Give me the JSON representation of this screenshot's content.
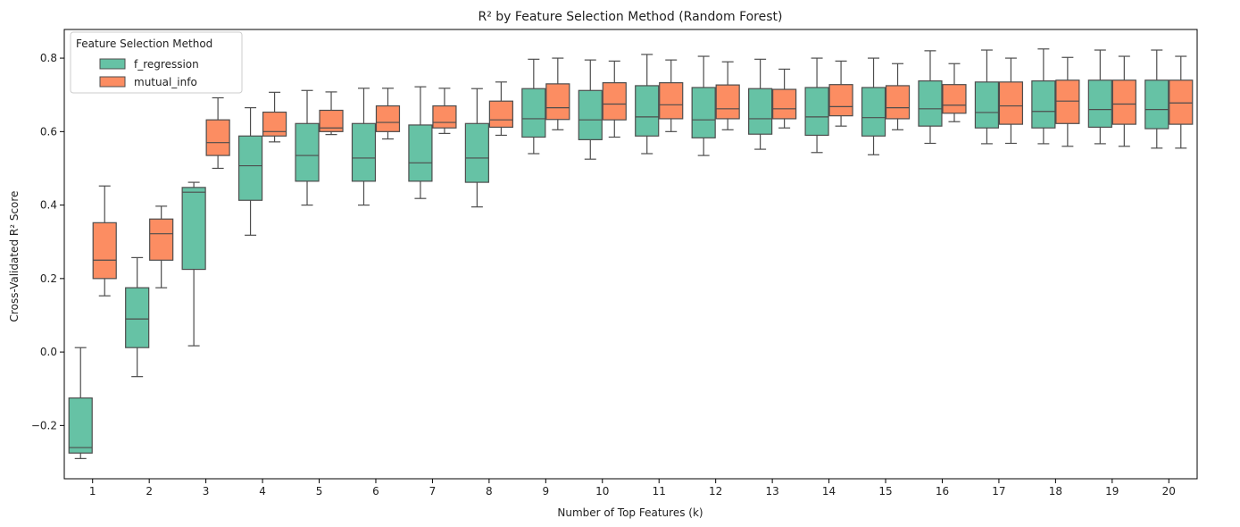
{
  "chart_data": {
    "type": "boxplot",
    "title": "R² by Feature Selection Method (Random Forest)",
    "xlabel": "Number of Top Features (k)",
    "ylabel": "Cross-Validated R² Score",
    "ylim": [
      -0.345,
      0.878
    ],
    "yticks": [
      -0.2,
      0.0,
      0.2,
      0.4,
      0.6,
      0.8
    ],
    "ytick_labels": [
      "−0.2",
      "0.0",
      "0.2",
      "0.4",
      "0.6",
      "0.8"
    ],
    "categories": [
      "1",
      "2",
      "3",
      "4",
      "5",
      "6",
      "7",
      "8",
      "9",
      "10",
      "11",
      "12",
      "13",
      "14",
      "15",
      "16",
      "17",
      "18",
      "19",
      "20"
    ],
    "grid": false,
    "legend": {
      "title": "Feature Selection Method",
      "placement": "top-left"
    },
    "series": [
      {
        "name": "f_regression",
        "color": "#66c2a5",
        "boxes": [
          {
            "min": -0.29,
            "q1": -0.275,
            "median": -0.26,
            "q3": -0.125,
            "max": 0.012
          },
          {
            "min": -0.067,
            "q1": 0.012,
            "median": 0.09,
            "q3": 0.175,
            "max": 0.257
          },
          {
            "min": 0.017,
            "q1": 0.225,
            "median": 0.435,
            "q3": 0.448,
            "max": 0.462
          },
          {
            "min": 0.318,
            "q1": 0.413,
            "median": 0.507,
            "q3": 0.588,
            "max": 0.665
          },
          {
            "min": 0.4,
            "q1": 0.465,
            "median": 0.535,
            "q3": 0.622,
            "max": 0.712
          },
          {
            "min": 0.4,
            "q1": 0.465,
            "median": 0.528,
            "q3": 0.622,
            "max": 0.718
          },
          {
            "min": 0.418,
            "q1": 0.465,
            "median": 0.515,
            "q3": 0.618,
            "max": 0.722
          },
          {
            "min": 0.395,
            "q1": 0.462,
            "median": 0.528,
            "q3": 0.622,
            "max": 0.717
          },
          {
            "min": 0.54,
            "q1": 0.585,
            "median": 0.635,
            "q3": 0.717,
            "max": 0.797
          },
          {
            "min": 0.525,
            "q1": 0.578,
            "median": 0.632,
            "q3": 0.712,
            "max": 0.795
          },
          {
            "min": 0.54,
            "q1": 0.588,
            "median": 0.64,
            "q3": 0.725,
            "max": 0.81
          },
          {
            "min": 0.535,
            "q1": 0.583,
            "median": 0.632,
            "q3": 0.72,
            "max": 0.805
          },
          {
            "min": 0.552,
            "q1": 0.593,
            "median": 0.635,
            "q3": 0.717,
            "max": 0.797
          },
          {
            "min": 0.543,
            "q1": 0.59,
            "median": 0.64,
            "q3": 0.72,
            "max": 0.8
          },
          {
            "min": 0.537,
            "q1": 0.588,
            "median": 0.638,
            "q3": 0.72,
            "max": 0.8
          },
          {
            "min": 0.568,
            "q1": 0.615,
            "median": 0.662,
            "q3": 0.738,
            "max": 0.82
          },
          {
            "min": 0.567,
            "q1": 0.61,
            "median": 0.652,
            "q3": 0.735,
            "max": 0.822
          },
          {
            "min": 0.567,
            "q1": 0.61,
            "median": 0.655,
            "q3": 0.738,
            "max": 0.825
          },
          {
            "min": 0.567,
            "q1": 0.612,
            "median": 0.66,
            "q3": 0.74,
            "max": 0.822
          },
          {
            "min": 0.555,
            "q1": 0.608,
            "median": 0.66,
            "q3": 0.74,
            "max": 0.822
          }
        ]
      },
      {
        "name": "mutual_info",
        "color": "#fc8d62",
        "boxes": [
          {
            "min": 0.153,
            "q1": 0.2,
            "median": 0.25,
            "q3": 0.352,
            "max": 0.452
          },
          {
            "min": 0.175,
            "q1": 0.25,
            "median": 0.322,
            "q3": 0.362,
            "max": 0.397
          },
          {
            "min": 0.5,
            "q1": 0.535,
            "median": 0.57,
            "q3": 0.632,
            "max": 0.692
          },
          {
            "min": 0.572,
            "q1": 0.588,
            "median": 0.6,
            "q3": 0.653,
            "max": 0.707
          },
          {
            "min": 0.592,
            "q1": 0.6,
            "median": 0.61,
            "q3": 0.658,
            "max": 0.708
          },
          {
            "min": 0.58,
            "q1": 0.6,
            "median": 0.625,
            "q3": 0.67,
            "max": 0.718
          },
          {
            "min": 0.595,
            "q1": 0.61,
            "median": 0.625,
            "q3": 0.67,
            "max": 0.718
          },
          {
            "min": 0.59,
            "q1": 0.612,
            "median": 0.632,
            "q3": 0.683,
            "max": 0.735
          },
          {
            "min": 0.605,
            "q1": 0.633,
            "median": 0.665,
            "q3": 0.73,
            "max": 0.8
          },
          {
            "min": 0.585,
            "q1": 0.632,
            "median": 0.675,
            "q3": 0.733,
            "max": 0.792
          },
          {
            "min": 0.6,
            "q1": 0.635,
            "median": 0.673,
            "q3": 0.733,
            "max": 0.795
          },
          {
            "min": 0.605,
            "q1": 0.635,
            "median": 0.662,
            "q3": 0.727,
            "max": 0.79
          },
          {
            "min": 0.61,
            "q1": 0.635,
            "median": 0.662,
            "q3": 0.715,
            "max": 0.77
          },
          {
            "min": 0.615,
            "q1": 0.643,
            "median": 0.668,
            "q3": 0.728,
            "max": 0.792
          },
          {
            "min": 0.605,
            "q1": 0.635,
            "median": 0.665,
            "q3": 0.725,
            "max": 0.785
          },
          {
            "min": 0.627,
            "q1": 0.65,
            "median": 0.672,
            "q3": 0.728,
            "max": 0.785
          },
          {
            "min": 0.568,
            "q1": 0.62,
            "median": 0.67,
            "q3": 0.735,
            "max": 0.8
          },
          {
            "min": 0.56,
            "q1": 0.622,
            "median": 0.683,
            "q3": 0.74,
            "max": 0.802
          },
          {
            "min": 0.56,
            "q1": 0.62,
            "median": 0.675,
            "q3": 0.74,
            "max": 0.805
          },
          {
            "min": 0.555,
            "q1": 0.62,
            "median": 0.678,
            "q3": 0.74,
            "max": 0.805
          }
        ]
      }
    ],
    "box_edge_color": "#4d4d4d"
  }
}
